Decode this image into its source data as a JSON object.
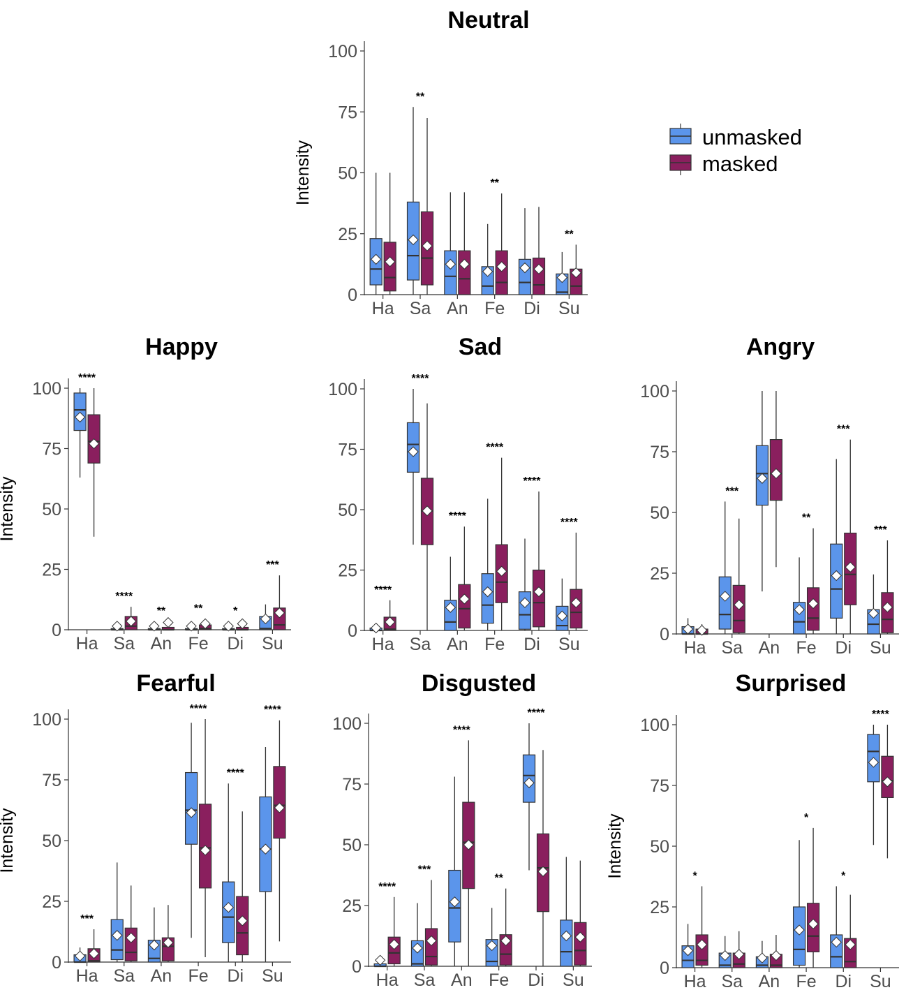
{
  "colors": {
    "unmasked": "#5B95EB",
    "masked": "#8A1F5E",
    "axis_text": "#4D4D4D",
    "title": "#000000",
    "line": "#333333"
  },
  "legend": {
    "placement": "top-right",
    "items": [
      {
        "label": "unmasked",
        "color": "#5B95EB"
      },
      {
        "label": "masked",
        "color": "#8A1F5E"
      }
    ]
  },
  "chart_data": [
    {
      "type": "boxplot",
      "title": "Neutral",
      "ylabel": "Intensity",
      "ylim": [
        0,
        100
      ],
      "yticks": [
        0,
        25,
        50,
        75,
        100
      ],
      "categories": [
        "Ha",
        "Sa",
        "An",
        "Fe",
        "Di",
        "Su"
      ],
      "series": [
        {
          "name": "unmasked",
          "boxes": [
            [
              0,
              4,
              10.5,
              23,
              50,
              14.5
            ],
            [
              0,
              6,
              16,
              38,
              77,
              22.5
            ],
            [
              0,
              0,
              7.5,
              18,
              42,
              12.5
            ],
            [
              0,
              0,
              3.5,
              11.5,
              29,
              9.5
            ],
            [
              0,
              0,
              5,
              14.5,
              35.5,
              11
            ],
            [
              0,
              0,
              1,
              8.5,
              17.5,
              7
            ]
          ]
        },
        {
          "name": "masked",
          "boxes": [
            [
              0,
              1.5,
              7,
              21.5,
              50,
              13.5
            ],
            [
              0,
              4,
              15,
              34,
              72.5,
              20
            ],
            [
              0,
              0,
              6.5,
              18,
              42,
              12.5
            ],
            [
              0,
              0,
              5,
              18,
              41.5,
              11.5
            ],
            [
              0,
              0,
              4,
              15,
              36,
              10.5
            ],
            [
              0,
              0,
              3.5,
              10.5,
              20.5,
              9
            ]
          ]
        }
      ],
      "significance": [
        "",
        "**",
        "",
        "**",
        "",
        "**"
      ]
    },
    {
      "type": "boxplot",
      "title": "Happy",
      "ylabel": "Intensity",
      "ylim": [
        0,
        100
      ],
      "yticks": [
        0,
        25,
        50,
        75,
        100
      ],
      "categories": [
        "Ha",
        "Sa",
        "An",
        "Fe",
        "Di",
        "Su"
      ],
      "series": [
        {
          "name": "unmasked",
          "boxes": [
            [
              63,
              82.5,
              91,
              98,
              100,
              88
            ],
            [
              0,
              0,
              0,
              0.5,
              2,
              1.5
            ],
            [
              0,
              0,
              0,
              0.5,
              2,
              1.5
            ],
            [
              0,
              0,
              0,
              0.5,
              2,
              1.5
            ],
            [
              0,
              0,
              0,
              0.5,
              2,
              1.5
            ],
            [
              0,
              0,
              0.5,
              5.5,
              10.5,
              4.5
            ]
          ]
        },
        {
          "name": "masked",
          "boxes": [
            [
              38.5,
              69,
              78,
              89,
              100,
              77
            ],
            [
              0,
              0,
              1.5,
              5.5,
              9.5,
              3.5
            ],
            [
              0,
              0,
              0,
              1,
              3.5,
              3
            ],
            [
              0,
              0,
              0.5,
              2,
              4.5,
              2.5
            ],
            [
              0,
              0,
              0,
              1,
              3.5,
              2.5
            ],
            [
              0,
              0,
              2,
              9,
              22.5,
              7
            ]
          ]
        }
      ],
      "significance": [
        "****",
        "****",
        "**",
        "**",
        "*",
        "***"
      ]
    },
    {
      "type": "boxplot",
      "title": "Sad",
      "ylabel": "",
      "ylim": [
        0,
        100
      ],
      "yticks": [
        0,
        25,
        50,
        75,
        100
      ],
      "categories": [
        "Ha",
        "Sa",
        "An",
        "Fe",
        "Di",
        "Su"
      ],
      "series": [
        {
          "name": "unmasked",
          "boxes": [
            [
              0,
              0,
              0,
              1,
              2.5,
              1
            ],
            [
              35.5,
              65.5,
              77,
              86,
              100,
              74
            ],
            [
              0,
              0,
              3.5,
              12.5,
              30.5,
              9.5
            ],
            [
              0,
              3,
              10.5,
              23.5,
              54.5,
              16
            ],
            [
              0,
              0.5,
              6.5,
              16,
              38,
              11.5
            ],
            [
              0,
              0,
              2,
              10,
              21.5,
              6
            ]
          ]
        },
        {
          "name": "masked",
          "boxes": [
            [
              0,
              0,
              0.5,
              5.5,
              12.5,
              3.5
            ],
            [
              0,
              35.5,
              49.5,
              63,
              94,
              49.5
            ],
            [
              0,
              1,
              9,
              19,
              43,
              13
            ],
            [
              0,
              11.5,
              20,
              35.5,
              71.5,
              24.5
            ],
            [
              0,
              1.5,
              11.5,
              25,
              57.5,
              16
            ],
            [
              0,
              1,
              7.5,
              17,
              40.5,
              11.5
            ]
          ]
        }
      ],
      "significance": [
        "****",
        "****",
        "****",
        "****",
        "****",
        "****"
      ]
    },
    {
      "type": "boxplot",
      "title": "Angry",
      "ylabel": "",
      "ylim": [
        0,
        100
      ],
      "yticks": [
        0,
        25,
        50,
        75,
        100
      ],
      "categories": [
        "Ha",
        "Sa",
        "An",
        "Fe",
        "Di",
        "Su"
      ],
      "series": [
        {
          "name": "unmasked",
          "boxes": [
            [
              0,
              0,
              0,
              3,
              6.5,
              2
            ],
            [
              0,
              2,
              8,
              23.5,
              54.5,
              15.5
            ],
            [
              17.5,
              53,
              66,
              77.5,
              100,
              64
            ],
            [
              0,
              0,
              5,
              13,
              31.5,
              10
            ],
            [
              0,
              6.5,
              18.5,
              37,
              72,
              24
            ],
            [
              0,
              0,
              4,
              10,
              24.5,
              8.5
            ]
          ]
        },
        {
          "name": "masked",
          "boxes": [
            [
              0,
              0,
              0,
              2,
              4,
              1.5
            ],
            [
              0,
              0.5,
              5.5,
              20,
              47.5,
              12
            ],
            [
              27.5,
              55,
              66,
              80,
              100,
              66
            ],
            [
              0,
              1.5,
              6.5,
              19,
              43.5,
              12.5
            ],
            [
              0,
              12,
              24.5,
              41.5,
              80,
              27.5
            ],
            [
              0,
              0.5,
              6,
              17,
              38.5,
              11
            ]
          ]
        }
      ],
      "significance": [
        "",
        "***",
        "",
        "**",
        "***",
        "***"
      ]
    },
    {
      "type": "boxplot",
      "title": "Fearful",
      "ylabel": "Intensity",
      "ylim": [
        0,
        100
      ],
      "yticks": [
        0,
        25,
        50,
        75,
        100
      ],
      "categories": [
        "Ha",
        "Sa",
        "An",
        "Fe",
        "Di",
        "Su"
      ],
      "series": [
        {
          "name": "unmasked",
          "boxes": [
            [
              0,
              0,
              0,
              3,
              6,
              2.5
            ],
            [
              0,
              1,
              5,
              17.5,
              41,
              11
            ],
            [
              0,
              0,
              1.5,
              9,
              22.5,
              7
            ],
            [
              10,
              48.5,
              62.5,
              78,
              98.5,
              61.5
            ],
            [
              0,
              8,
              18.5,
              33,
              73.5,
              22.5
            ],
            [
              0,
              29,
              46.5,
              68,
              88.5,
              46.5
            ]
          ]
        },
        {
          "name": "masked",
          "boxes": [
            [
              0,
              0,
              0.5,
              5.5,
              13.5,
              3.5
            ],
            [
              0,
              0.5,
              4,
              14,
              31.5,
              10
            ],
            [
              0,
              0.5,
              6.5,
              10,
              23.5,
              8
            ],
            [
              2,
              30.5,
              47,
              65,
              100,
              46
            ],
            [
              0,
              3,
              12,
              27,
              62,
              17
            ],
            [
              8.5,
              51,
              64.5,
              80.5,
              99.5,
              63.5
            ]
          ]
        }
      ],
      "significance": [
        "***",
        "",
        "",
        "****",
        "****",
        "****"
      ]
    },
    {
      "type": "boxplot",
      "title": "Disgusted",
      "ylabel": "",
      "ylim": [
        0,
        100
      ],
      "yticks": [
        0,
        25,
        50,
        75,
        100
      ],
      "categories": [
        "Ha",
        "Sa",
        "An",
        "Fe",
        "Di",
        "Su"
      ],
      "series": [
        {
          "name": "unmasked",
          "boxes": [
            [
              0,
              0,
              0,
              1,
              4,
              2.5
            ],
            [
              0,
              0,
              1,
              10.5,
              26,
              7.5
            ],
            [
              0,
              10,
              24,
              39.5,
              78,
              26.5
            ],
            [
              0,
              0,
              2,
              11,
              24,
              8.5
            ],
            [
              39.5,
              67.5,
              78.5,
              87,
              100,
              75.5
            ],
            [
              0,
              0,
              6,
              19,
              45,
              12.5
            ]
          ]
        },
        {
          "name": "masked",
          "boxes": [
            [
              0,
              1,
              5.5,
              12,
              28.5,
              9
            ],
            [
              0,
              0.5,
              4,
              15.5,
              35.5,
              10.5
            ],
            [
              0,
              32,
              51,
              67.5,
              93,
              50
            ],
            [
              0,
              0.5,
              5,
              13,
              32,
              10.5
            ],
            [
              0,
              22.5,
              40.5,
              54.5,
              89,
              39
            ],
            [
              0,
              0.5,
              6.5,
              18,
              43.5,
              12
            ]
          ]
        }
      ],
      "significance": [
        "****",
        "***",
        "****",
        "**",
        "****",
        ""
      ]
    },
    {
      "type": "boxplot",
      "title": "Surprised",
      "ylabel": "Intensity",
      "ylim": [
        0,
        100
      ],
      "yticks": [
        0,
        25,
        50,
        75,
        100
      ],
      "categories": [
        "Ha",
        "Sa",
        "An",
        "Fe",
        "Di",
        "Su"
      ],
      "series": [
        {
          "name": "unmasked",
          "boxes": [
            [
              0,
              0,
              3,
              9,
              18,
              7
            ],
            [
              0,
              0,
              1,
              6,
              13,
              5
            ],
            [
              0,
              0,
              1,
              4.5,
              11,
              4
            ],
            [
              0,
              1,
              7.5,
              25,
              52.5,
              15.5
            ],
            [
              0,
              0,
              4.5,
              13.5,
              33.5,
              10.5
            ],
            [
              50.5,
              76.5,
              89,
              96,
              100,
              84.5
            ]
          ]
        },
        {
          "name": "masked",
          "boxes": [
            [
              0,
              1,
              3,
              13.5,
              33.5,
              9.5
            ],
            [
              0,
              0,
              1.5,
              6,
              15,
              5.5
            ],
            [
              0,
              0,
              1,
              5.5,
              13.5,
              5
            ],
            [
              0,
              6.5,
              13,
              26.5,
              57.5,
              18
            ],
            [
              0,
              0,
              2.5,
              12,
              30,
              9.5
            ],
            [
              45,
              70,
              77,
              87,
              100,
              76.5
            ]
          ]
        }
      ],
      "significance": [
        "*",
        "",
        "",
        "*",
        "*",
        "****"
      ]
    }
  ]
}
